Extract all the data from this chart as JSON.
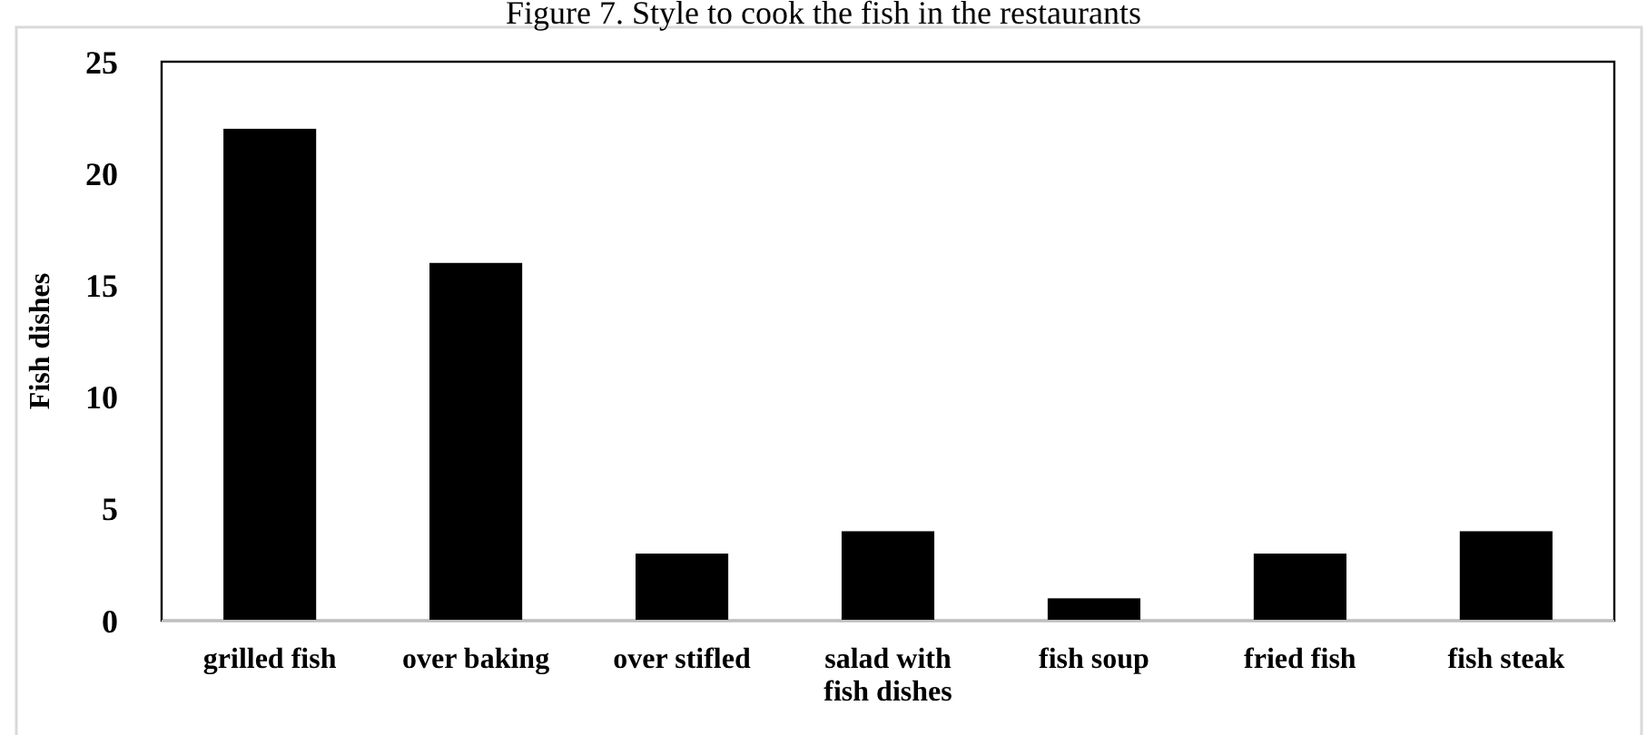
{
  "chart_data": {
    "type": "bar",
    "title": "Figure 7. Style to cook the fish in the restaurants",
    "ylabel": "Fish dishes",
    "categories": [
      "grilled fish",
      "over baking",
      "over stifled",
      "salad with fish dishes",
      "fish soup",
      "fried fish",
      "fish steak"
    ],
    "values": [
      22,
      16,
      3,
      4,
      1,
      3,
      4
    ],
    "color": "#000000",
    "ylim": [
      0,
      25
    ],
    "yticks": [
      0,
      5,
      10,
      15,
      20,
      25
    ],
    "grid": false
  }
}
